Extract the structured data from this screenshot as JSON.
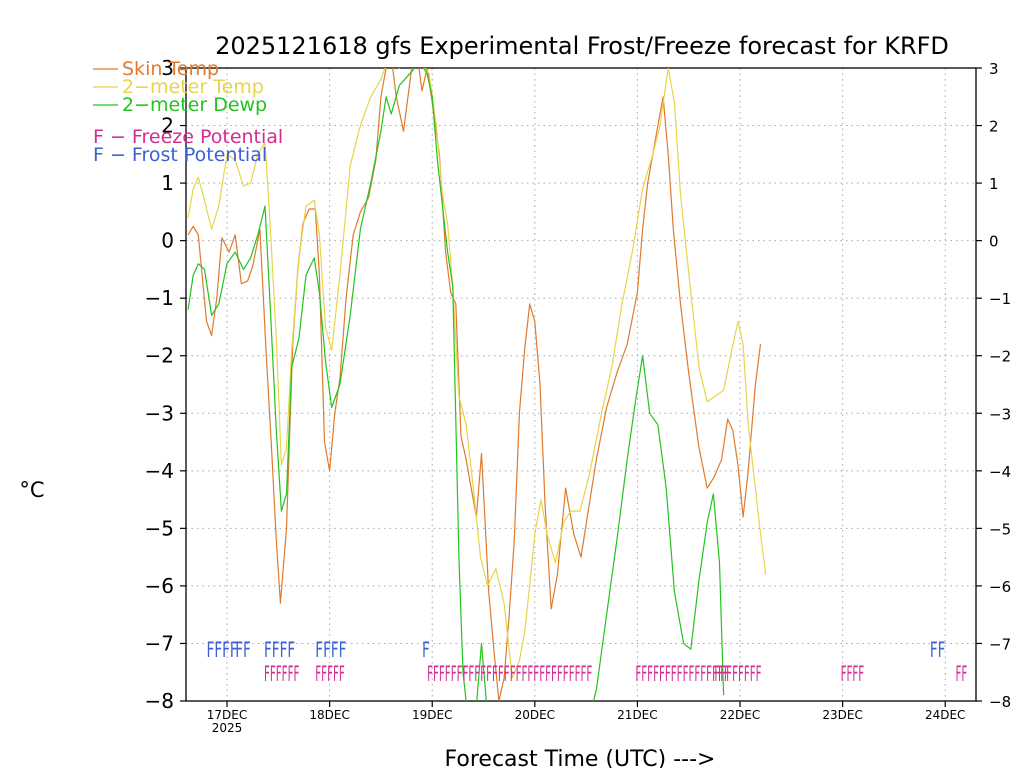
{
  "chart_data": {
    "type": "line",
    "title": "2025121618 gfs Experimental Frost/Freeze forecast for KRFD",
    "xlabel": "Forecast Time (UTC) --->",
    "ylabel": "°C",
    "xlim": [
      -0.4,
      7.3
    ],
    "ylim": [
      -8,
      3
    ],
    "yticks": [
      3,
      2,
      1,
      0,
      -1,
      -2,
      -3,
      -4,
      -5,
      -6,
      -7,
      -8
    ],
    "ytick_labels": [
      "3",
      "2",
      "1",
      "0",
      "−1",
      "−2",
      "−3",
      "−4",
      "−5",
      "−6",
      "−7",
      "−8"
    ],
    "x_ticks": [
      {
        "x": 0,
        "label": "17DEC",
        "sublabel": "2025"
      },
      {
        "x": 1,
        "label": "18DEC",
        "sublabel": ""
      },
      {
        "x": 2,
        "label": "19DEC",
        "sublabel": ""
      },
      {
        "x": 3,
        "label": "20DEC",
        "sublabel": ""
      },
      {
        "x": 4,
        "label": "21DEC",
        "sublabel": ""
      },
      {
        "x": 5,
        "label": "22DEC",
        "sublabel": ""
      },
      {
        "x": 6,
        "label": "23DEC",
        "sublabel": ""
      },
      {
        "x": 7,
        "label": "24DEC",
        "sublabel": ""
      }
    ],
    "grid": true,
    "legend": {
      "series": [
        {
          "name": "Skin Temp",
          "color": "#e07a2e"
        },
        {
          "name": "2−meter Temp",
          "color": "#e8d44a"
        },
        {
          "name": "2−meter Dewp",
          "color": "#22c41e"
        }
      ],
      "markers": [
        {
          "letter": "F",
          "text": " − Freeze Potential",
          "color": "#d22d8f"
        },
        {
          "letter": "F",
          "text": " − Frost Potential",
          "color": "#3c5fd3"
        }
      ]
    },
    "series": [
      {
        "name": "Skin Temp",
        "color": "#e07a2e",
        "points": [
          [
            -0.38,
            0.1
          ],
          [
            -0.33,
            0.25
          ],
          [
            -0.28,
            0.1
          ],
          [
            -0.2,
            -1.4
          ],
          [
            -0.15,
            -1.65
          ],
          [
            -0.1,
            -1.0
          ],
          [
            -0.05,
            0.05
          ],
          [
            0.02,
            -0.2
          ],
          [
            0.08,
            0.1
          ],
          [
            0.14,
            -0.75
          ],
          [
            0.2,
            -0.7
          ],
          [
            0.25,
            -0.45
          ],
          [
            0.32,
            0.2
          ],
          [
            0.38,
            -1.9
          ],
          [
            0.43,
            -3.5
          ],
          [
            0.48,
            -5.2
          ],
          [
            0.52,
            -6.3
          ],
          [
            0.58,
            -5.0
          ],
          [
            0.64,
            -1.8
          ],
          [
            0.69,
            -0.5
          ],
          [
            0.74,
            0.3
          ],
          [
            0.8,
            0.55
          ],
          [
            0.86,
            0.55
          ],
          [
            0.9,
            -0.6
          ],
          [
            0.95,
            -3.5
          ],
          [
            1.0,
            -4.0
          ],
          [
            1.05,
            -3.0
          ],
          [
            1.1,
            -2.4
          ],
          [
            1.16,
            -1.0
          ],
          [
            1.23,
            0.1
          ],
          [
            1.3,
            0.5
          ],
          [
            1.38,
            0.75
          ],
          [
            1.45,
            1.4
          ],
          [
            1.5,
            2.5
          ],
          [
            1.55,
            3.0
          ],
          [
            1.6,
            3.2
          ],
          [
            1.65,
            2.5
          ],
          [
            1.72,
            1.9
          ],
          [
            1.8,
            3.0
          ],
          [
            1.85,
            3.3
          ],
          [
            1.9,
            2.6
          ],
          [
            1.95,
            3.0
          ],
          [
            2.0,
            2.4
          ],
          [
            2.07,
            1.5
          ],
          [
            2.13,
            -0.2
          ],
          [
            2.18,
            -0.9
          ],
          [
            2.23,
            -1.1
          ],
          [
            2.28,
            -3.4
          ],
          [
            2.33,
            -3.8
          ],
          [
            2.38,
            -4.3
          ],
          [
            2.43,
            -4.8
          ],
          [
            2.48,
            -3.7
          ],
          [
            2.55,
            -6.1
          ],
          [
            2.6,
            -7.1
          ],
          [
            2.65,
            -8.0
          ],
          [
            2.7,
            -7.6
          ],
          [
            2.75,
            -6.5
          ],
          [
            2.8,
            -5.2
          ],
          [
            2.85,
            -3.0
          ],
          [
            2.9,
            -1.9
          ],
          [
            2.95,
            -1.1
          ],
          [
            3.0,
            -1.4
          ],
          [
            3.05,
            -2.5
          ],
          [
            3.1,
            -4.6
          ],
          [
            3.16,
            -6.4
          ],
          [
            3.22,
            -5.8
          ],
          [
            3.3,
            -4.3
          ],
          [
            3.38,
            -5.1
          ],
          [
            3.45,
            -5.5
          ],
          [
            3.52,
            -4.7
          ],
          [
            3.6,
            -3.8
          ],
          [
            3.7,
            -2.9
          ],
          [
            3.8,
            -2.3
          ],
          [
            3.9,
            -1.8
          ],
          [
            4.0,
            -0.9
          ],
          [
            4.05,
            0.2
          ],
          [
            4.1,
            1.0
          ],
          [
            4.15,
            1.5
          ],
          [
            4.2,
            2.0
          ],
          [
            4.25,
            2.5
          ],
          [
            4.3,
            1.5
          ],
          [
            4.35,
            0.2
          ],
          [
            4.42,
            -1.1
          ],
          [
            4.5,
            -2.3
          ],
          [
            4.6,
            -3.6
          ],
          [
            4.68,
            -4.3
          ],
          [
            4.75,
            -4.1
          ],
          [
            4.82,
            -3.8
          ],
          [
            4.88,
            -3.1
          ],
          [
            4.93,
            -3.3
          ],
          [
            4.98,
            -3.9
          ],
          [
            5.03,
            -4.8
          ],
          [
            5.08,
            -4.0
          ],
          [
            5.15,
            -2.5
          ],
          [
            5.2,
            -1.8
          ]
        ]
      },
      {
        "name": "2−meter Temp",
        "color": "#e8d44a",
        "points": [
          [
            -0.38,
            0.4
          ],
          [
            -0.33,
            0.9
          ],
          [
            -0.28,
            1.1
          ],
          [
            -0.22,
            0.7
          ],
          [
            -0.15,
            0.2
          ],
          [
            -0.08,
            0.6
          ],
          [
            0.0,
            1.5
          ],
          [
            0.08,
            1.4
          ],
          [
            0.16,
            0.95
          ],
          [
            0.23,
            1.0
          ],
          [
            0.3,
            1.5
          ],
          [
            0.37,
            1.7
          ],
          [
            0.42,
            0.3
          ],
          [
            0.48,
            -1.7
          ],
          [
            0.53,
            -3.9
          ],
          [
            0.58,
            -3.6
          ],
          [
            0.63,
            -1.9
          ],
          [
            0.7,
            -0.3
          ],
          [
            0.77,
            0.6
          ],
          [
            0.85,
            0.7
          ],
          [
            0.9,
            0.1
          ],
          [
            0.96,
            -1.5
          ],
          [
            1.02,
            -1.9
          ],
          [
            1.1,
            -0.6
          ],
          [
            1.2,
            1.3
          ],
          [
            1.3,
            2.0
          ],
          [
            1.4,
            2.5
          ],
          [
            1.5,
            2.8
          ],
          [
            1.58,
            3.2
          ],
          [
            1.68,
            3.0
          ],
          [
            1.78,
            3.2
          ],
          [
            1.88,
            3.1
          ],
          [
            1.97,
            2.9
          ],
          [
            2.04,
            2.0
          ],
          [
            2.1,
            0.8
          ],
          [
            2.15,
            0.3
          ],
          [
            2.2,
            -0.8
          ],
          [
            2.26,
            -2.7
          ],
          [
            2.33,
            -3.2
          ],
          [
            2.4,
            -4.3
          ],
          [
            2.47,
            -5.5
          ],
          [
            2.54,
            -6.0
          ],
          [
            2.62,
            -5.7
          ],
          [
            2.7,
            -6.3
          ],
          [
            2.78,
            -7.6
          ],
          [
            2.85,
            -7.3
          ],
          [
            2.9,
            -6.8
          ],
          [
            2.95,
            -6.0
          ],
          [
            3.0,
            -5.1
          ],
          [
            3.06,
            -4.5
          ],
          [
            3.12,
            -5.1
          ],
          [
            3.2,
            -5.6
          ],
          [
            3.28,
            -4.9
          ],
          [
            3.35,
            -4.7
          ],
          [
            3.44,
            -4.7
          ],
          [
            3.54,
            -4.0
          ],
          [
            3.65,
            -3.0
          ],
          [
            3.75,
            -2.2
          ],
          [
            3.85,
            -1.1
          ],
          [
            3.95,
            -0.2
          ],
          [
            4.05,
            0.9
          ],
          [
            4.15,
            1.5
          ],
          [
            4.22,
            2.0
          ],
          [
            4.3,
            3.0
          ],
          [
            4.36,
            2.4
          ],
          [
            4.42,
            0.8
          ],
          [
            4.52,
            -0.9
          ],
          [
            4.6,
            -2.2
          ],
          [
            4.68,
            -2.8
          ],
          [
            4.76,
            -2.7
          ],
          [
            4.84,
            -2.6
          ],
          [
            4.92,
            -1.9
          ],
          [
            4.98,
            -1.4
          ],
          [
            5.03,
            -1.8
          ],
          [
            5.08,
            -3.2
          ],
          [
            5.15,
            -4.3
          ],
          [
            5.2,
            -5.1
          ],
          [
            5.25,
            -5.8
          ]
        ]
      },
      {
        "name": "2−meter Dewp",
        "color": "#22c41e",
        "points": [
          [
            -0.38,
            -1.2
          ],
          [
            -0.33,
            -0.6
          ],
          [
            -0.28,
            -0.4
          ],
          [
            -0.22,
            -0.5
          ],
          [
            -0.15,
            -1.3
          ],
          [
            -0.08,
            -1.1
          ],
          [
            0.0,
            -0.4
          ],
          [
            0.08,
            -0.2
          ],
          [
            0.16,
            -0.5
          ],
          [
            0.23,
            -0.3
          ],
          [
            0.3,
            0.1
          ],
          [
            0.37,
            0.6
          ],
          [
            0.42,
            -1.1
          ],
          [
            0.48,
            -3.3
          ],
          [
            0.53,
            -4.7
          ],
          [
            0.58,
            -4.4
          ],
          [
            0.63,
            -2.2
          ],
          [
            0.7,
            -1.7
          ],
          [
            0.77,
            -0.6
          ],
          [
            0.85,
            -0.3
          ],
          [
            0.9,
            -0.9
          ],
          [
            0.96,
            -2.1
          ],
          [
            1.02,
            -2.9
          ],
          [
            1.1,
            -2.5
          ],
          [
            1.2,
            -1.3
          ],
          [
            1.3,
            0.2
          ],
          [
            1.4,
            1.0
          ],
          [
            1.5,
            1.9
          ],
          [
            1.55,
            2.5
          ],
          [
            1.6,
            2.2
          ],
          [
            1.68,
            2.7
          ],
          [
            1.78,
            2.9
          ],
          [
            1.88,
            3.1
          ],
          [
            1.95,
            2.9
          ],
          [
            2.0,
            2.5
          ],
          [
            2.05,
            1.4
          ],
          [
            2.1,
            0.6
          ],
          [
            2.15,
            -0.2
          ],
          [
            2.2,
            -0.8
          ],
          [
            2.26,
            -5.5
          ],
          [
            2.3,
            -7.5
          ],
          [
            2.36,
            -8.5
          ],
          [
            2.42,
            -8.3
          ],
          [
            2.48,
            -7.0
          ],
          [
            2.55,
            -8.5
          ],
          [
            3.5,
            -8.5
          ],
          [
            3.6,
            -7.8
          ],
          [
            3.7,
            -6.5
          ],
          [
            3.8,
            -5.2
          ],
          [
            3.9,
            -3.8
          ],
          [
            3.98,
            -2.8
          ],
          [
            4.05,
            -2.0
          ],
          [
            4.12,
            -3.0
          ],
          [
            4.2,
            -3.2
          ],
          [
            4.28,
            -4.3
          ],
          [
            4.36,
            -6.1
          ],
          [
            4.45,
            -7.0
          ],
          [
            4.52,
            -7.1
          ],
          [
            4.6,
            -5.9
          ],
          [
            4.68,
            -4.9
          ],
          [
            4.74,
            -4.4
          ],
          [
            4.8,
            -5.6
          ],
          [
            4.84,
            -7.9
          ]
        ]
      }
    ],
    "frost_flags": [
      {
        "x": -0.2,
        "label": "FFFF"
      },
      {
        "x": 0.08,
        "label": "FF"
      },
      {
        "x": 0.36,
        "label": "FFFF"
      },
      {
        "x": 0.86,
        "label": "FFFF"
      },
      {
        "x": 1.9,
        "label": "F"
      },
      {
        "x": 6.85,
        "label": "FF"
      }
    ],
    "freeze_flags": [
      {
        "x": 0.36,
        "label": "FFFFFF"
      },
      {
        "x": 0.86,
        "label": "FFFFF"
      },
      {
        "x": 1.95,
        "label": "FFFFFFFFFFFFFFFFFFFFFFFFFFFF"
      },
      {
        "x": 3.98,
        "label": "FFFFFFFFFFFFFFFF"
      },
      {
        "x": 4.75,
        "label": "FFFFFFFF"
      },
      {
        "x": 5.98,
        "label": "FFFF"
      },
      {
        "x": 7.1,
        "label": "FF"
      }
    ]
  }
}
